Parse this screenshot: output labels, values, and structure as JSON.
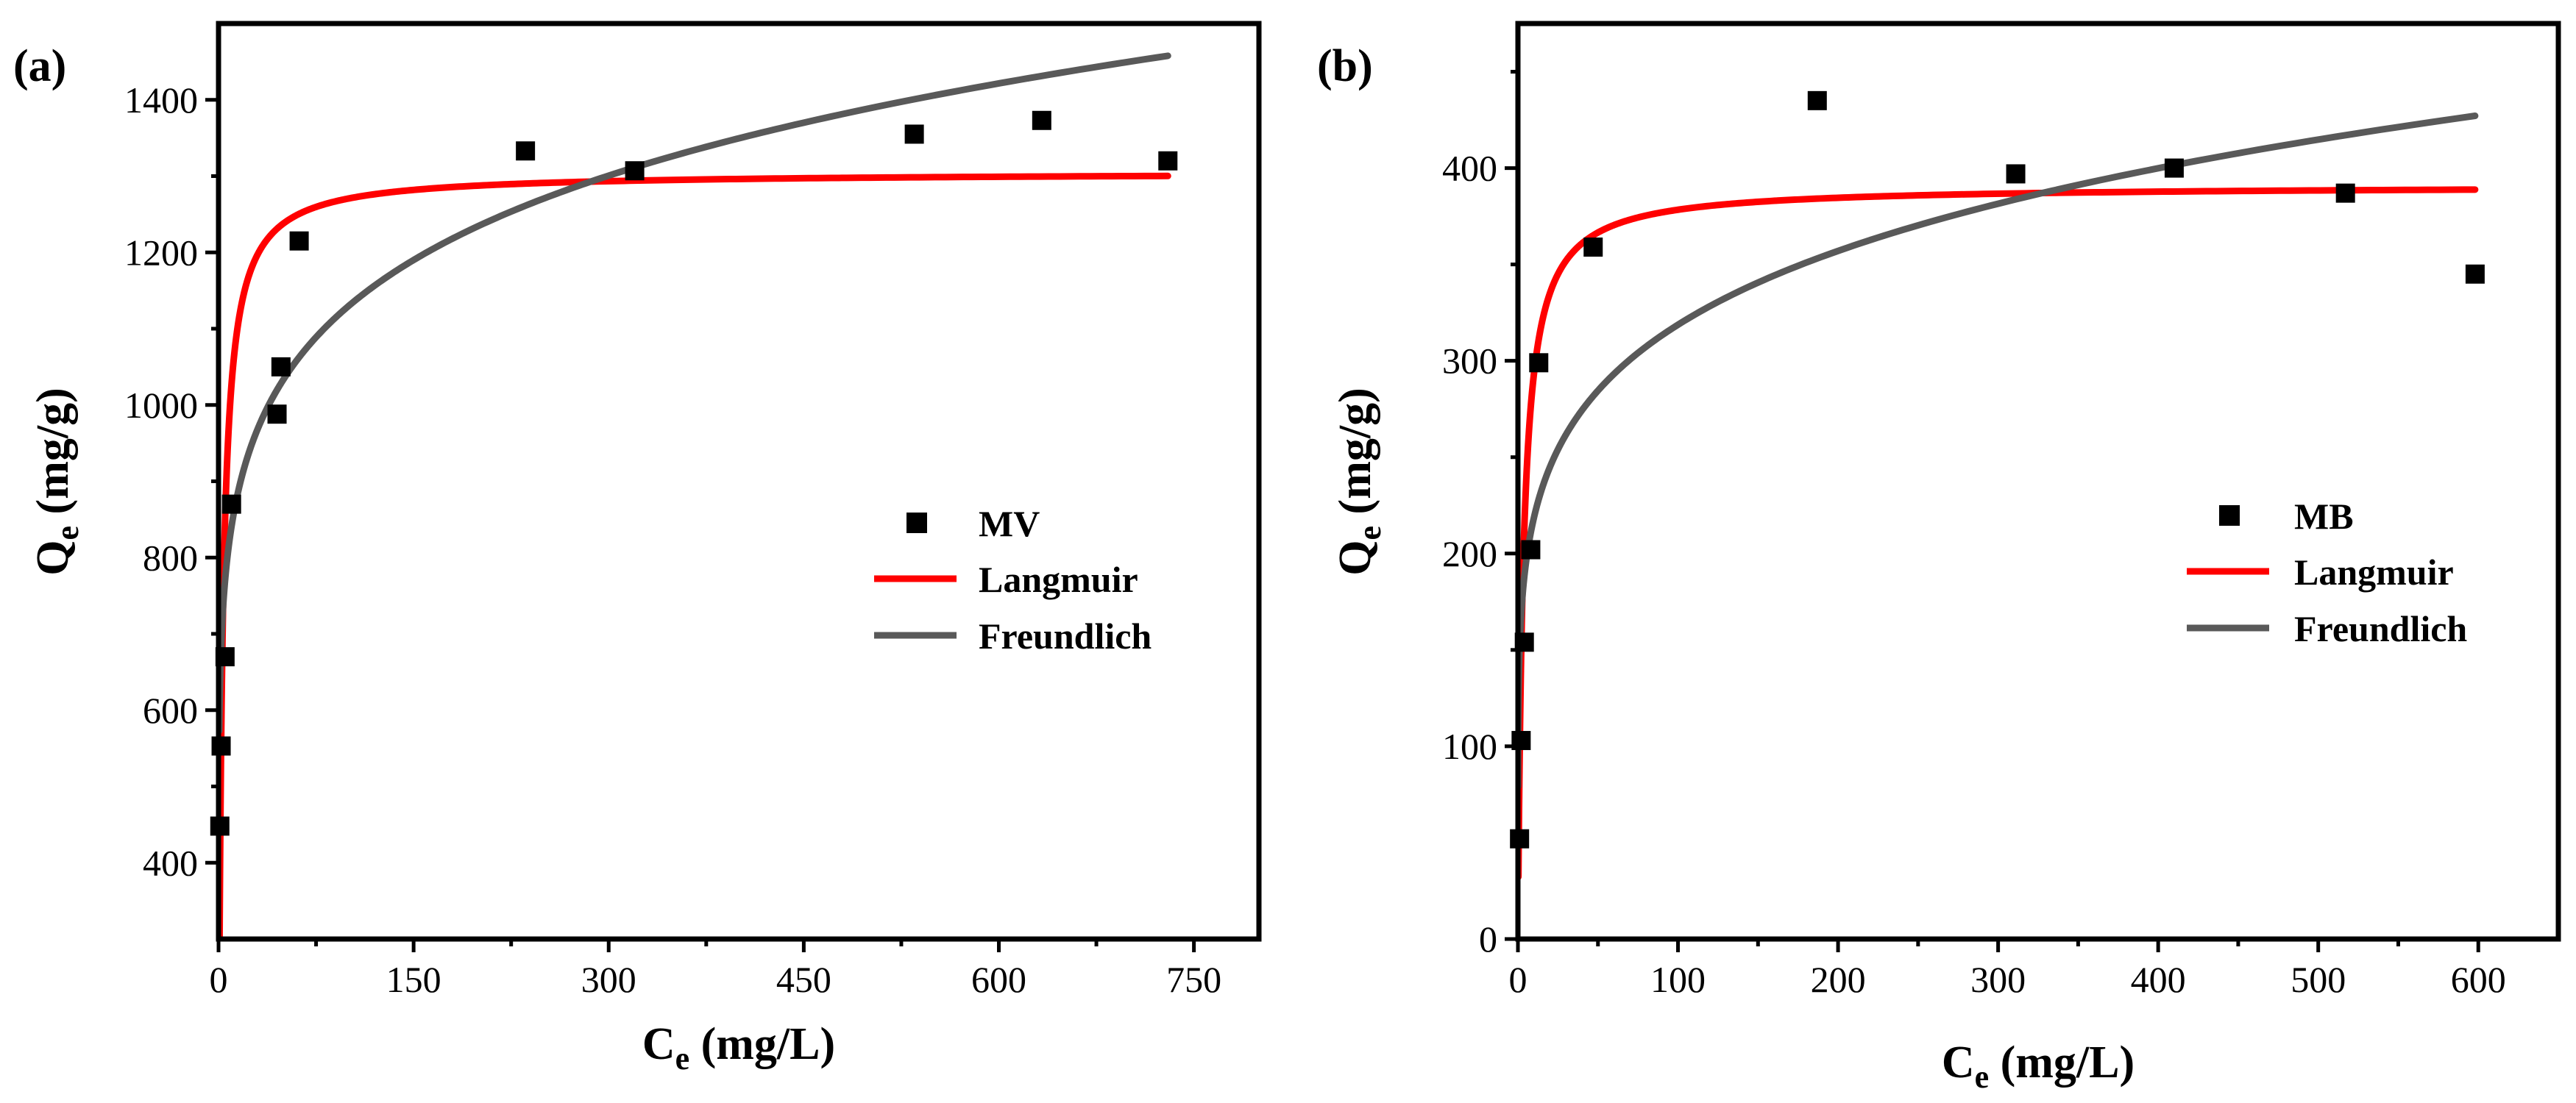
{
  "chart_data": [
    {
      "type": "scatter",
      "panel_label": "(a)",
      "xlabel_base": "C",
      "xlabel_sub": "e",
      "xlabel_unit": " (mg/L)",
      "ylabel_base": "Q",
      "ylabel_sub": "e",
      "ylabel_unit": " (mg/g)",
      "xlim": [
        0,
        800
      ],
      "ylim": [
        300,
        1500
      ],
      "xticks": [
        0,
        150,
        300,
        450,
        600,
        750
      ],
      "xtick_labels": [
        "0",
        "150",
        "300",
        "450",
        "600",
        "750"
      ],
      "yticks": [
        400,
        600,
        800,
        1000,
        1200,
        1400
      ],
      "ytick_labels": [
        "400",
        "600",
        "800",
        "1000",
        "1200",
        "1400"
      ],
      "legend_position": "center-right",
      "series": [
        {
          "name": "MV",
          "kind": "points",
          "color": "#000000",
          "x": [
            1,
            2,
            5,
            10,
            45,
            48,
            62,
            236,
            320,
            535,
            633,
            730
          ],
          "y": [
            448,
            553,
            670,
            870,
            988,
            1050,
            1215,
            1333,
            1307,
            1355,
            1373,
            1320
          ]
        },
        {
          "name": "Langmuir",
          "kind": "curve",
          "color": "#ff0000",
          "model": "langmuir",
          "qmax": 1305,
          "KL": 0.37,
          "x_range": [
            0.5,
            730
          ]
        },
        {
          "name": "Freundlich",
          "kind": "curve",
          "color": "#595959",
          "model": "freundlich",
          "KF": 626,
          "n": 7.8,
          "x_range": [
            0.5,
            730
          ]
        }
      ]
    },
    {
      "type": "scatter",
      "panel_label": "(b)",
      "xlabel_base": "C",
      "xlabel_sub": "e",
      "xlabel_unit": " (mg/L)",
      "ylabel_base": "Q",
      "ylabel_sub": "e",
      "ylabel_unit": " (mg/g)",
      "xlim": [
        0,
        650
      ],
      "ylim": [
        0,
        475
      ],
      "xticks": [
        0,
        100,
        200,
        300,
        400,
        500,
        600
      ],
      "xtick_labels": [
        "0",
        "100",
        "200",
        "300",
        "400",
        "500",
        "600"
      ],
      "yticks": [
        0,
        100,
        200,
        300,
        400
      ],
      "ytick_labels": [
        "0",
        "100",
        "200",
        "300",
        "400"
      ],
      "legend_position": "center-right",
      "series": [
        {
          "name": "MB",
          "kind": "points",
          "color": "#000000",
          "x": [
            1,
            2,
            4,
            8,
            13,
            47,
            187,
            311,
            410,
            517,
            598
          ],
          "y": [
            52,
            103,
            154,
            202,
            299,
            359,
            435,
            397,
            400,
            387,
            345
          ]
        },
        {
          "name": "Langmuir",
          "kind": "curve",
          "color": "#ff0000",
          "model": "langmuir",
          "qmax": 391,
          "KL": 0.3,
          "x_range": [
            0.3,
            598
          ]
        },
        {
          "name": "Freundlich",
          "kind": "curve",
          "color": "#595959",
          "model": "freundlich",
          "KF": 150,
          "n": 6.11,
          "x_range": [
            0.02,
            598
          ]
        }
      ]
    }
  ]
}
